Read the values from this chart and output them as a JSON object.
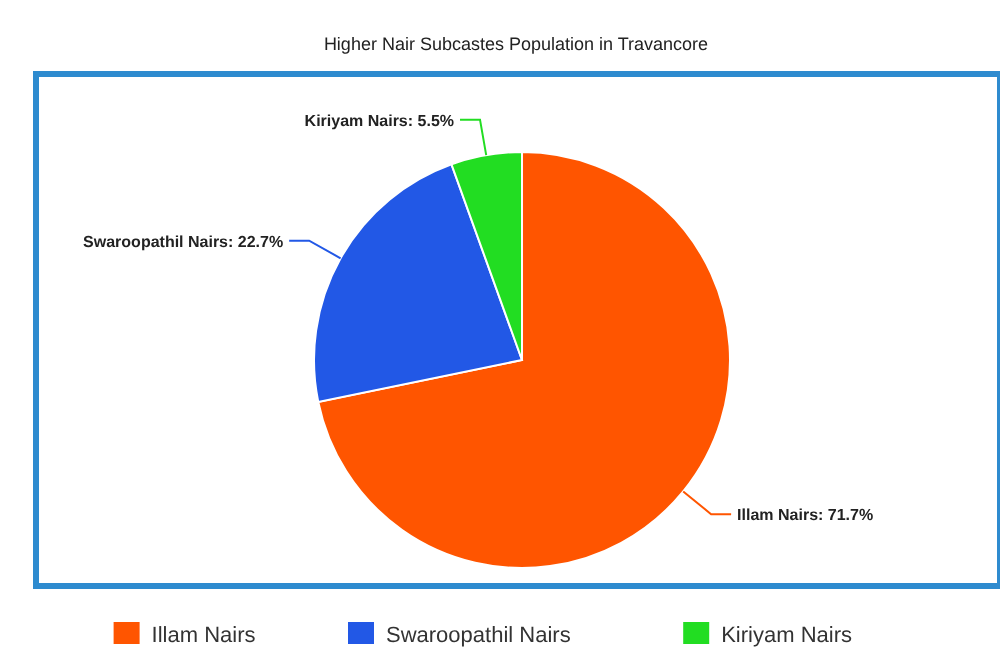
{
  "chart_data": {
    "type": "pie",
    "title": "Higher Nair Subcastes Population in Travancore",
    "categories": [
      "Illam Nairs",
      "Swaroopathil Nairs",
      "Kiriyam Nairs"
    ],
    "values": [
      71.7,
      22.7,
      5.5
    ],
    "colors": [
      "#ff5500",
      "#2258e6",
      "#22dd22"
    ],
    "value_labels": [
      "Illam Nairs: 71.7%",
      "Swaroopathil Nairs: 22.7%",
      "Kiriyam Nairs: 5.5%"
    ],
    "legend": "bottom"
  }
}
